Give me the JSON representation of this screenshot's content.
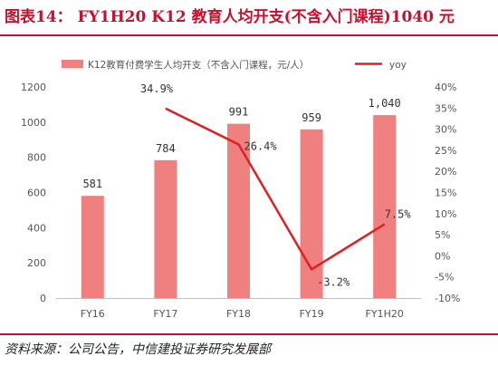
{
  "title": "图表14： FY1H20 K12 教育人均开支(不含入门课程)1040 元",
  "source": "资料来源：公司公告，中信建投证券研究发展部",
  "chart_data": {
    "type": "bar",
    "categories": [
      "FY16",
      "FY17",
      "FY18",
      "FY19",
      "FY1H20"
    ],
    "series": [
      {
        "name": "K12教育付费学生人均开支（不含入门课程，元/人）",
        "type": "bar",
        "axis": "left",
        "color": "#f08080",
        "values": [
          581,
          784,
          991,
          959,
          1040
        ],
        "labels": [
          "581",
          "784",
          "991",
          "959",
          "1,040"
        ]
      },
      {
        "name": "yoy",
        "type": "line",
        "axis": "right",
        "color": "#e02020",
        "values": [
          null,
          34.9,
          26.4,
          -3.2,
          7.5
        ],
        "labels": [
          "",
          "34.9%",
          "26.4%",
          "-3.2%",
          "7.5%"
        ]
      }
    ],
    "ylim": [
      0,
      1200
    ],
    "yticks": [
      "0",
      "200",
      "400",
      "600",
      "800",
      "1000",
      "1200"
    ],
    "y2lim": [
      -10,
      40
    ],
    "y2ticks": [
      "-10%",
      "-5%",
      "0%",
      "5%",
      "10%",
      "15%",
      "20%",
      "25%",
      "30%",
      "35%",
      "40%"
    ],
    "legend_position": "top",
    "grid": false
  }
}
